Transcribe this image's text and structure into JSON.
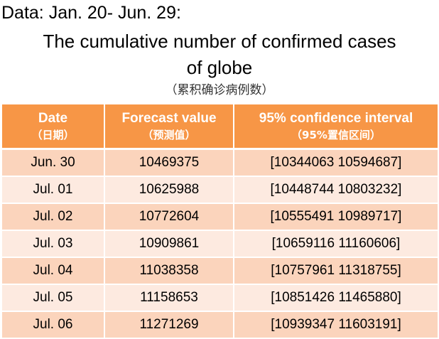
{
  "note": "Data: Jan. 20- Jun. 29:",
  "title_line1": "The cumulative number of confirmed cases",
  "title_line2": "of  globe",
  "subtitle": "（累积确诊病例数）",
  "colors": {
    "header_bg": "#f79646",
    "header_text": "#ffffff",
    "row_odd_bg": "#fbd4bc",
    "row_even_bg": "#fdeae0"
  },
  "table": {
    "headers": [
      {
        "en": "Date",
        "zh": "（日期）"
      },
      {
        "en": "Forecast value",
        "zh": "（预测值）"
      },
      {
        "en": "95% confidence interval",
        "zh": "（95%置信区间）"
      }
    ],
    "rows": [
      {
        "date": "Jun. 30",
        "forecast": "10469375",
        "interval": "[10344063  10594687]"
      },
      {
        "date": "Jul. 01",
        "forecast": "10625988",
        "interval": "[10448744  10803232]"
      },
      {
        "date": "Jul. 02",
        "forecast": "10772604",
        "interval": "[10555491  10989717]"
      },
      {
        "date": "Jul. 03",
        "forecast": "10909861",
        "interval": "[10659116  11160606]"
      },
      {
        "date": "Jul. 04",
        "forecast": "11038358",
        "interval": "[10757961  11318755]"
      },
      {
        "date": "Jul. 05",
        "forecast": "11158653",
        "interval": "[10851426  11465880]"
      },
      {
        "date": "Jul. 06",
        "forecast": "11271269",
        "interval": "[10939347  11603191]"
      }
    ]
  }
}
